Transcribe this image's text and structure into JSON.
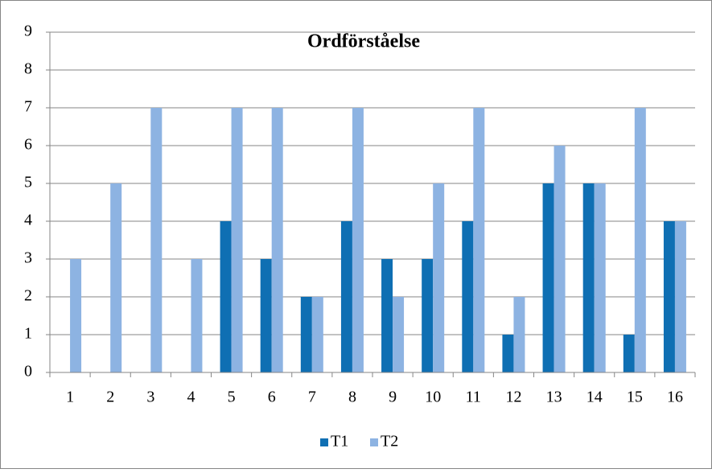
{
  "chart_data": {
    "type": "bar",
    "title": "Ordförståelse",
    "categories": [
      "1",
      "2",
      "3",
      "4",
      "5",
      "6",
      "7",
      "8",
      "9",
      "10",
      "11",
      "12",
      "13",
      "14",
      "15",
      "16"
    ],
    "series": [
      {
        "name": "T1",
        "color": "#0f6fb3",
        "values": [
          0,
          0,
          0,
          0,
          4,
          3,
          2,
          4,
          3,
          3,
          4,
          1,
          5,
          5,
          1,
          4
        ]
      },
      {
        "name": "T2",
        "color": "#8db3e2",
        "values": [
          3,
          5,
          7,
          3,
          7,
          7,
          2,
          7,
          2,
          5,
          7,
          2,
          6,
          5,
          7,
          4
        ]
      }
    ],
    "ylim": [
      0,
      9
    ],
    "yticks": [
      0,
      1,
      2,
      3,
      4,
      5,
      6,
      7,
      8,
      9
    ],
    "grid": true,
    "legend": "bottom"
  }
}
